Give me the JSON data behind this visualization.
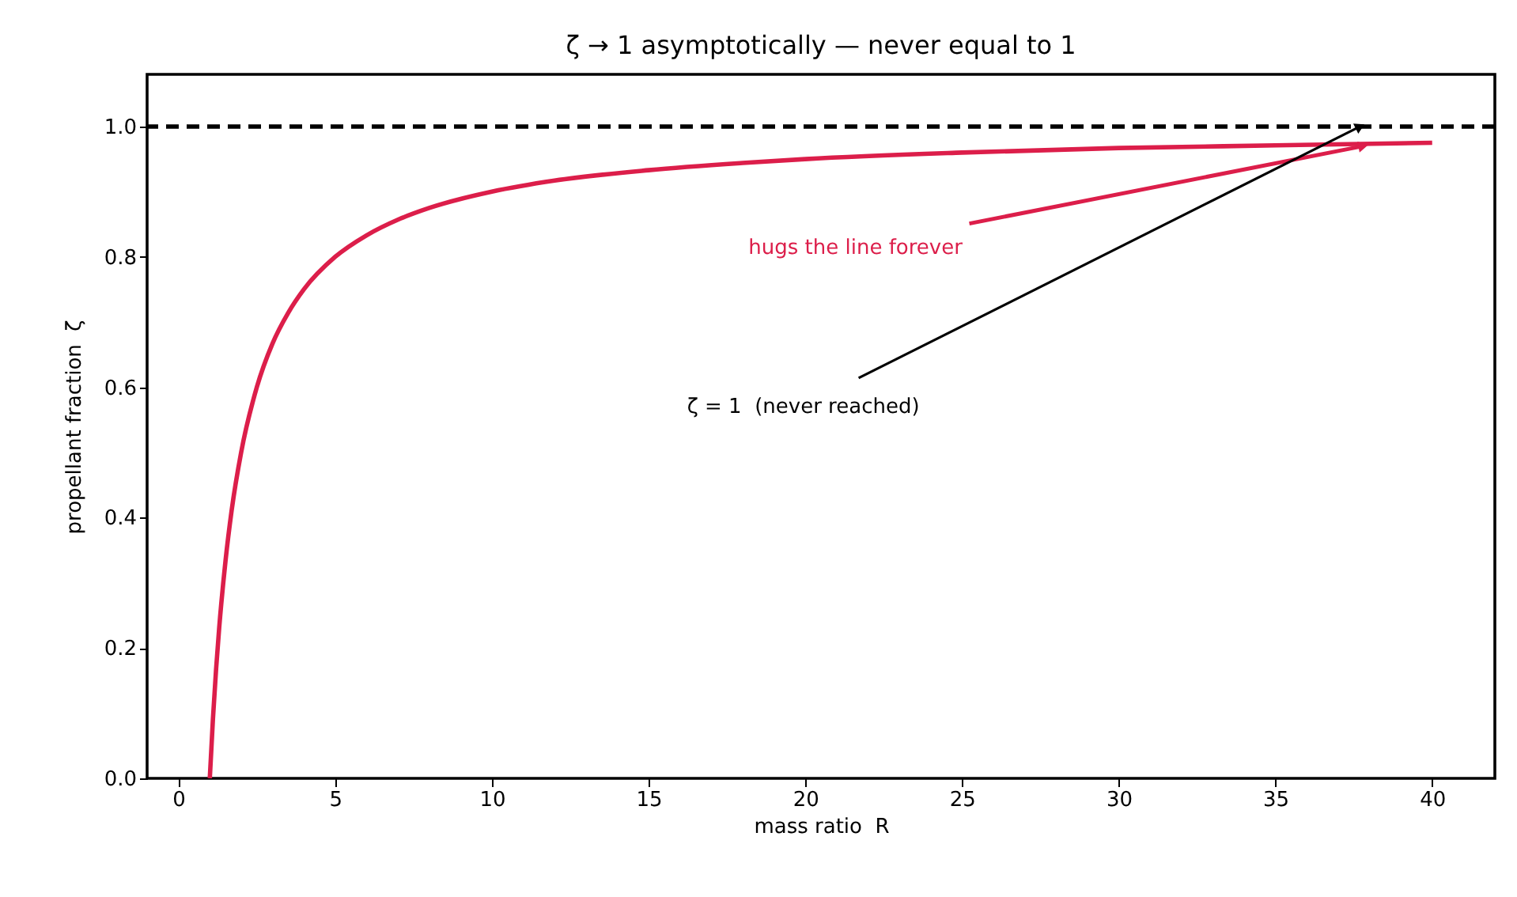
{
  "chart_data": {
    "type": "line",
    "title": "ζ → 1 asymptotically — never equal to 1",
    "xlabel": "mass ratio  R",
    "ylabel": "propellant fraction  ζ",
    "series": [
      {
        "color": "#dc1e4a",
        "x": [
          1,
          1.1,
          1.2,
          1.3,
          1.5,
          1.7,
          2,
          2.5,
          3,
          3.5,
          4,
          5,
          6,
          7,
          8,
          10,
          12,
          15,
          18,
          20,
          25,
          30,
          35,
          40
        ],
        "values": [
          0,
          0.091,
          0.167,
          0.231,
          0.333,
          0.412,
          0.5,
          0.6,
          0.667,
          0.714,
          0.75,
          0.8,
          0.833,
          0.857,
          0.875,
          0.9,
          0.917,
          0.933,
          0.944,
          0.95,
          0.96,
          0.967,
          0.971,
          0.975
        ]
      }
    ],
    "xlim": [
      -1,
      42
    ],
    "xticks": [
      0,
      5,
      10,
      15,
      20,
      25,
      30,
      35,
      40
    ],
    "ylim": [
      0,
      1.08
    ],
    "yticks": [
      {
        "value": 0,
        "label": "0.0"
      },
      {
        "value": 0.2,
        "label": "0.2"
      },
      {
        "value": 0.4,
        "label": "0.4"
      },
      {
        "value": 0.6,
        "label": "0.6"
      },
      {
        "value": 0.8,
        "label": "0.8"
      },
      {
        "value": 1.0,
        "label": "1.0"
      }
    ],
    "ref_lines": [
      {
        "axis": "y",
        "value": 1.0,
        "color": "#000000",
        "line_style": "dashed"
      }
    ],
    "annotations": [
      {
        "text": "hugs the line forever",
        "x": 37.8,
        "y": 0.97
      },
      {
        "text": "ζ = 1  (never reached)",
        "x": 37.7,
        "y": 1.0
      }
    ],
    "grid": false,
    "line_style": "solid",
    "marker": "none"
  }
}
